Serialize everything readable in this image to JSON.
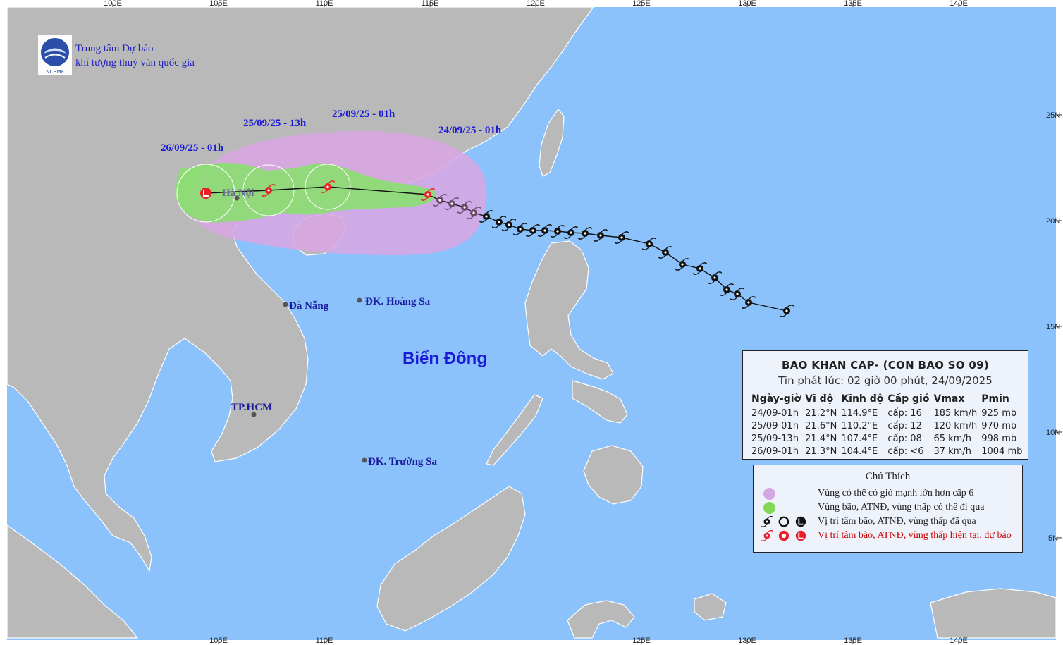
{
  "center": {
    "name_line1": "Trung tâm Dự báo",
    "name_line2": "khí tượng thuỷ văn quốc gia",
    "logo_text": "NCHMF"
  },
  "longitudes_top": [
    "100E",
    "105E",
    "110E",
    "115E",
    "120E",
    "125E",
    "130E",
    "135E",
    "140E"
  ],
  "longitudes_bottom": [
    "105E",
    "110E",
    "125E",
    "130E",
    "135E",
    "140E"
  ],
  "latitudes": [
    "25N",
    "20N",
    "15N",
    "10N",
    "5N"
  ],
  "labels": {
    "hanoi": "Hà Nội",
    "danang": "Đà Nẵng",
    "hoangsa": "ĐK. Hoàng Sa",
    "truongsa": "ĐK. Trường Sa",
    "hcm": "TP.HCM",
    "sea": "Biển Đông"
  },
  "forecast_times": [
    "26/09/25 - 01h",
    "25/09/25 - 13h",
    "25/09/25 - 01h",
    "24/09/25 - 01h"
  ],
  "bulletin": {
    "title": "BAO KHAN CAP- (CON BAO SO 09)",
    "issued": "Tin phát lúc: 02 giờ 00 phút, 24/09/2025",
    "headers": [
      "Ngày-giờ",
      "Vĩ độ",
      "Kinh độ",
      "Cấp gió",
      "Vmax",
      "Pmin"
    ],
    "rows": [
      [
        "24/09-01h",
        "21.2°N",
        "114.9°E",
        "cấp: 16",
        "185 km/h",
        "925 mb"
      ],
      [
        "25/09-01h",
        "21.6°N",
        "110.2°E",
        "cấp: 12",
        "120 km/h",
        "970 mb"
      ],
      [
        "25/09-13h",
        "21.4°N",
        "107.4°E",
        "cấp: 08",
        "65 km/h",
        "998 mb"
      ],
      [
        "26/09-01h",
        "21.3°N",
        "104.4°E",
        "cấp: <6",
        "37 km/h",
        "1004 mb"
      ]
    ]
  },
  "legend": {
    "title": "Chú Thích",
    "items": [
      "Vùng có thể có gió mạnh lớn hơn cấp 6",
      "Vùng bão, ATNĐ, vùng thấp có thể đi qua",
      "Vị trí tâm bão, ATNĐ, vùng thấp đã qua",
      "Vị trí tâm bão, ATNĐ, vùng thấp hiện tại, dự báo"
    ]
  },
  "colors": {
    "sea": "#8cc2fb",
    "land": "#b9b9b9",
    "wind_zone": "#d9a6e3",
    "storm_zone": "#86e26a",
    "current": "#e8202a",
    "past": "#111111",
    "label": "#1a1ad6"
  }
}
